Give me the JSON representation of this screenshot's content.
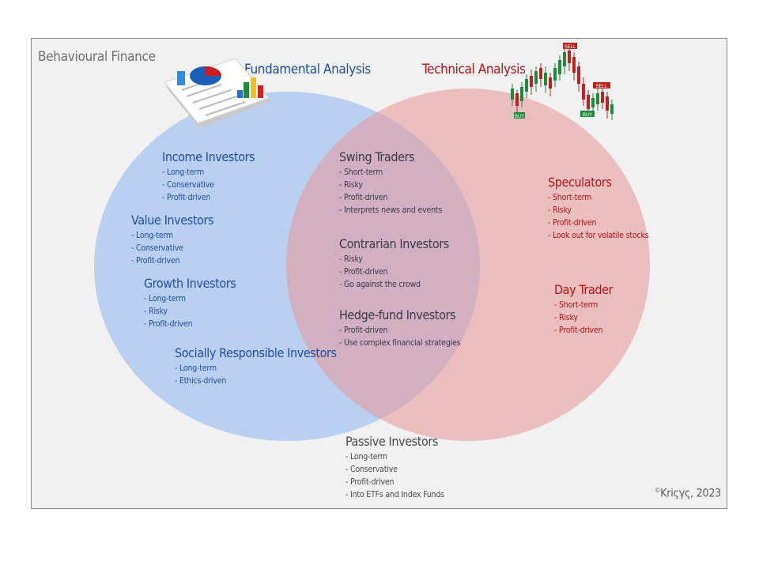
{
  "page_title": "Behavioural Finance",
  "sets": {
    "fundamental": "Fundamental Analysis",
    "technical": "Technical Analysis"
  },
  "groups": {
    "income": {
      "title": "Income Investors",
      "items": [
        "- Long-term",
        "- Conservative",
        "- Profit-driven"
      ]
    },
    "value": {
      "title": "Value Investors",
      "items": [
        "- Long-term",
        "- Conservative",
        "- Profit-driven"
      ]
    },
    "growth": {
      "title": "Growth Investors",
      "items": [
        "- Long-term",
        "- Risky",
        "- Profit-driven"
      ]
    },
    "social": {
      "title": "Socially Responsible Investors",
      "items": [
        "- Long-term",
        "- Ethics-driven"
      ]
    },
    "swing": {
      "title": "Swing Traders",
      "items": [
        "- Short-term",
        "- Risky",
        "- Profit-driven",
        "- Interprets news and events"
      ]
    },
    "contrarian": {
      "title": "Contrarian Investors",
      "items": [
        "- Risky",
        "- Profit-driven",
        "- Go against the crowd"
      ]
    },
    "hedge": {
      "title": "Hedge-fund Investors",
      "items": [
        "- Profit-driven",
        "- Use complex financial strategies"
      ]
    },
    "speculators": {
      "title": "Speculators",
      "items": [
        "- Short-term",
        "- Risky",
        "- Profit-driven",
        "- Look out for volatile stocks"
      ]
    },
    "daytrader": {
      "title": "Day Trader",
      "items": [
        "- Short-term",
        "- Risky",
        "- Profit-driven"
      ]
    },
    "passive": {
      "title": "Passive Investors",
      "items": [
        "- Long-term",
        "- Conservative",
        "- Profit-driven",
        "- Into ETFs and Index Funds"
      ]
    }
  },
  "chart_badges": {
    "sell": "SELL",
    "buy": "BUY"
  },
  "copyright": {
    "symbol": "©",
    "author": "Kriςγς",
    "year": ", 2023"
  },
  "colors": {
    "fundamental_fill": "#aac8f2",
    "technical_fill": "#eea6a6",
    "blue_text": "#1f4e9a",
    "red_text": "#b01515"
  }
}
